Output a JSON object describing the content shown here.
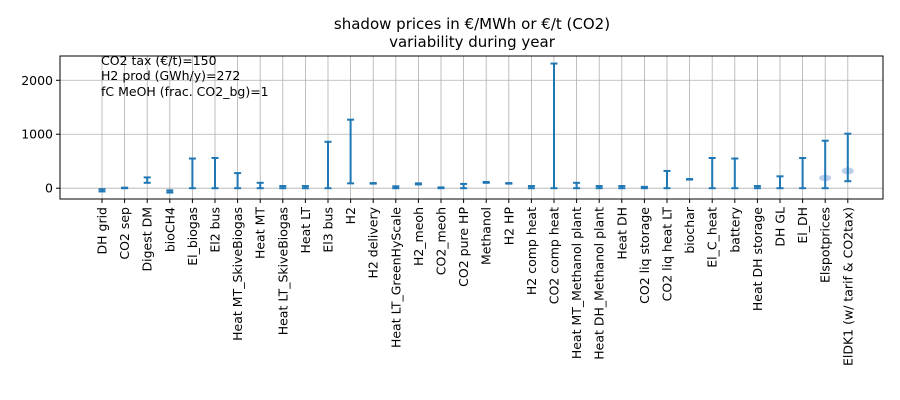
{
  "chart_data": {
    "type": "range",
    "title_lines": [
      "shadow prices in €/MWh or €/t (CO2)",
      "variability during year"
    ],
    "annotations": [
      "CO2 tax (€/t)=150",
      "H2 prod (GWh/y)=272",
      "fC MeOH (frac. CO2_bg)=1"
    ],
    "ylim": [
      -200,
      2450
    ],
    "yticks": [
      0,
      1000,
      2000
    ],
    "grid": true,
    "colors": {
      "line": "#1f77b4",
      "violin": "#aec7e8",
      "grid": "#b0b0b0"
    },
    "categories": [
      "DH grid",
      "CO2 sep",
      "Digest DM",
      "bioCH4",
      "El_biogas",
      "El2 bus",
      "Heat MT_SkiveBiogas",
      "Heat MT",
      "Heat LT_SkiveBiogas",
      "Heat LT",
      "El3 bus",
      "H2",
      "H2 delivery",
      "Heat LT_GreenHyScale",
      "H2_meoh",
      "CO2_meoh",
      "CO2 pure HP",
      "Methanol",
      "H2 HP",
      "H2 comp heat",
      "CO2 comp heat",
      "Heat MT_Methanol plant",
      "Heat DH_Methanol plant",
      "Heat DH",
      "CO2 liq storage",
      "CO2 liq heat LT",
      "biochar",
      "El_C_heat",
      "battery",
      "Heat DH storage",
      "DH GL",
      "El_DH",
      "Elspotprices",
      "ElDK1 (w/ tarif & CO2tax)"
    ],
    "ranges": [
      [
        -60,
        -20
      ],
      [
        0,
        10
      ],
      [
        100,
        200
      ],
      [
        -80,
        -40
      ],
      [
        0,
        550
      ],
      [
        0,
        560
      ],
      [
        0,
        280
      ],
      [
        0,
        100
      ],
      [
        0,
        40
      ],
      [
        0,
        40
      ],
      [
        0,
        860
      ],
      [
        90,
        1270
      ],
      [
        85,
        95
      ],
      [
        0,
        35
      ],
      [
        70,
        90
      ],
      [
        0,
        15
      ],
      [
        0,
        80
      ],
      [
        100,
        115
      ],
      [
        85,
        95
      ],
      [
        0,
        40
      ],
      [
        0,
        2310
      ],
      [
        0,
        100
      ],
      [
        0,
        40
      ],
      [
        0,
        40
      ],
      [
        0,
        25
      ],
      [
        0,
        320
      ],
      [
        160,
        170
      ],
      [
        0,
        560
      ],
      [
        0,
        550
      ],
      [
        0,
        40
      ],
      [
        0,
        220
      ],
      [
        0,
        560
      ],
      [
        0,
        880
      ],
      [
        130,
        1010
      ]
    ],
    "violins": [
      {
        "category": "Elspotprices",
        "center": 190,
        "halfwidth": 60
      },
      {
        "category": "ElDK1 (w/ tarif & CO2tax)",
        "center": 320,
        "halfwidth": 65
      }
    ]
  }
}
